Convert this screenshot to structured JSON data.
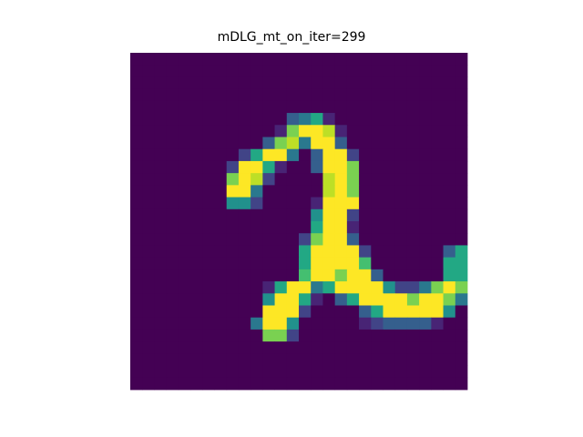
{
  "chart_data": {
    "type": "heatmap",
    "title": "mDLG_mt_on_iter=299",
    "xlabel": "",
    "ylabel": "",
    "grid": false,
    "axes": "off",
    "colormap": "viridis",
    "vmin": 0,
    "vmax": 1,
    "rows": 28,
    "cols": 28,
    "values": [
      [
        0,
        0,
        0,
        0,
        0,
        0,
        0,
        0,
        0,
        0,
        0,
        0,
        0,
        0,
        0,
        0,
        0,
        0,
        0,
        0,
        0,
        0,
        0,
        0,
        0,
        0,
        0,
        0
      ],
      [
        0,
        0,
        0,
        0,
        0,
        0,
        0,
        0,
        0,
        0,
        0,
        0,
        0,
        0,
        0,
        0,
        0,
        0,
        0,
        0,
        0,
        0,
        0,
        0,
        0,
        0,
        0,
        0
      ],
      [
        0,
        0,
        0,
        0,
        0,
        0,
        0,
        0,
        0,
        0,
        0,
        0,
        0,
        0,
        0,
        0,
        0,
        0,
        0,
        0,
        0,
        0,
        0,
        0,
        0,
        0,
        0,
        0
      ],
      [
        0,
        0,
        0,
        0,
        0,
        0,
        0,
        0,
        0,
        0,
        0,
        0,
        0,
        0,
        0,
        0,
        0,
        0,
        0,
        0,
        0,
        0,
        0,
        0,
        0,
        0,
        0,
        0
      ],
      [
        0,
        0,
        0,
        0,
        0,
        0,
        0,
        0,
        0,
        0,
        0,
        0,
        0,
        0,
        0,
        0,
        0,
        0,
        0,
        0,
        0,
        0,
        0,
        0,
        0,
        0,
        0,
        0
      ],
      [
        0,
        0,
        0,
        0,
        0,
        0,
        0,
        0,
        0,
        0,
        0,
        0,
        0,
        0.3,
        0.4,
        0.6,
        0.1,
        0,
        0,
        0,
        0,
        0,
        0,
        0,
        0,
        0,
        0,
        0
      ],
      [
        0,
        0,
        0,
        0,
        0,
        0,
        0,
        0,
        0,
        0,
        0,
        0,
        0.1,
        0.8,
        1,
        1,
        0.9,
        0.1,
        0,
        0,
        0,
        0,
        0,
        0,
        0,
        0,
        0,
        0
      ],
      [
        0,
        0,
        0,
        0,
        0,
        0,
        0,
        0,
        0,
        0,
        0,
        0.3,
        0.8,
        0.9,
        0.4,
        1,
        1,
        0.3,
        0,
        0,
        0,
        0,
        0,
        0,
        0,
        0,
        0,
        0
      ],
      [
        0,
        0,
        0,
        0,
        0,
        0,
        0,
        0,
        0,
        0.2,
        0.6,
        1,
        1,
        0.4,
        0,
        0.3,
        1,
        1,
        0.2,
        0,
        0,
        0,
        0,
        0,
        0,
        0,
        0,
        0
      ],
      [
        0,
        0,
        0,
        0,
        0,
        0,
        0,
        0,
        0.2,
        1,
        1,
        0.6,
        0.1,
        0,
        0,
        0.3,
        1,
        1,
        0.8,
        0,
        0,
        0,
        0,
        0,
        0,
        0,
        0,
        0
      ],
      [
        0,
        0,
        0,
        0,
        0,
        0,
        0,
        0,
        0.8,
        1,
        0.9,
        0.2,
        0,
        0,
        0,
        0,
        0.9,
        1,
        0.8,
        0,
        0,
        0,
        0,
        0,
        0,
        0,
        0,
        0
      ],
      [
        0,
        0,
        0,
        0,
        0,
        0,
        0,
        0,
        1,
        1,
        0.4,
        0,
        0,
        0,
        0,
        0,
        0.9,
        1,
        0.8,
        0,
        0,
        0,
        0,
        0,
        0,
        0,
        0,
        0
      ],
      [
        0,
        0,
        0,
        0,
        0,
        0,
        0,
        0,
        0.5,
        0.5,
        0.2,
        0,
        0,
        0,
        0,
        0.1,
        1,
        1,
        1,
        0,
        0,
        0,
        0,
        0,
        0,
        0,
        0,
        0
      ],
      [
        0,
        0,
        0,
        0,
        0,
        0,
        0,
        0,
        0,
        0,
        0,
        0,
        0,
        0,
        0,
        0.5,
        1,
        1,
        0.2,
        0,
        0,
        0,
        0,
        0,
        0,
        0,
        0,
        0
      ],
      [
        0,
        0,
        0,
        0,
        0,
        0,
        0,
        0,
        0,
        0,
        0,
        0,
        0,
        0,
        0,
        0.6,
        1,
        1,
        0.1,
        0,
        0,
        0,
        0,
        0,
        0,
        0,
        0,
        0
      ],
      [
        0,
        0,
        0,
        0,
        0,
        0,
        0,
        0,
        0,
        0,
        0,
        0,
        0,
        0,
        0.2,
        0.8,
        1,
        1,
        0.3,
        0,
        0,
        0,
        0,
        0,
        0,
        0,
        0,
        0
      ],
      [
        0,
        0,
        0,
        0,
        0,
        0,
        0,
        0,
        0,
        0,
        0,
        0,
        0,
        0,
        0.6,
        1,
        1,
        1,
        1,
        0.2,
        0,
        0,
        0,
        0,
        0,
        0,
        0.3,
        0.6
      ],
      [
        0,
        0,
        0,
        0,
        0,
        0,
        0,
        0,
        0,
        0,
        0,
        0,
        0,
        0,
        0.6,
        1,
        1,
        1,
        1,
        0.7,
        0,
        0,
        0,
        0,
        0,
        0,
        0.6,
        0.6
      ],
      [
        0,
        0,
        0,
        0,
        0,
        0,
        0,
        0,
        0,
        0,
        0,
        0,
        0,
        0,
        0.7,
        1,
        1,
        0.8,
        1,
        1,
        0.3,
        0,
        0,
        0,
        0,
        0,
        0.6,
        0.6
      ],
      [
        0,
        0,
        0,
        0,
        0,
        0,
        0,
        0,
        0,
        0,
        0,
        0.1,
        0.6,
        1,
        1,
        0.4,
        0.6,
        1,
        1,
        1,
        1,
        0.5,
        0.2,
        0.2,
        0.4,
        0.8,
        1,
        0.8
      ],
      [
        0,
        0,
        0,
        0,
        0,
        0,
        0,
        0,
        0,
        0,
        0,
        0.5,
        1,
        1,
        0.6,
        0.1,
        0,
        0.3,
        0.6,
        1,
        1,
        1,
        1,
        0.8,
        1,
        1,
        0.8,
        0.4
      ],
      [
        0,
        0,
        0,
        0,
        0,
        0,
        0,
        0,
        0,
        0,
        0,
        1,
        1,
        1,
        0.2,
        0,
        0,
        0,
        0,
        0.3,
        0.6,
        1,
        1,
        1,
        1,
        1,
        0.5,
        0
      ],
      [
        0,
        0,
        0,
        0,
        0,
        0,
        0,
        0,
        0,
        0,
        0.4,
        1,
        1,
        0.5,
        0,
        0,
        0,
        0,
        0,
        0.1,
        0.2,
        0.3,
        0.3,
        0.3,
        0.3,
        0.1,
        0,
        0
      ],
      [
        0,
        0,
        0,
        0,
        0,
        0,
        0,
        0,
        0,
        0,
        0,
        0.8,
        0.8,
        0.2,
        0,
        0,
        0,
        0,
        0,
        0,
        0,
        0,
        0,
        0,
        0,
        0,
        0,
        0
      ],
      [
        0,
        0,
        0,
        0,
        0,
        0,
        0,
        0,
        0,
        0,
        0,
        0,
        0,
        0,
        0,
        0,
        0,
        0,
        0,
        0,
        0,
        0,
        0,
        0,
        0,
        0,
        0,
        0
      ],
      [
        0,
        0,
        0,
        0,
        0,
        0,
        0,
        0,
        0,
        0,
        0,
        0,
        0,
        0,
        0,
        0,
        0,
        0,
        0,
        0,
        0,
        0,
        0,
        0,
        0,
        0,
        0,
        0
      ],
      [
        0,
        0,
        0,
        0,
        0,
        0,
        0,
        0,
        0,
        0,
        0,
        0,
        0,
        0,
        0,
        0,
        0,
        0,
        0,
        0,
        0,
        0,
        0,
        0,
        0,
        0,
        0,
        0
      ],
      [
        0,
        0,
        0,
        0,
        0,
        0,
        0,
        0,
        0,
        0,
        0,
        0,
        0,
        0,
        0,
        0,
        0,
        0,
        0,
        0,
        0,
        0,
        0,
        0,
        0,
        0,
        0,
        0
      ]
    ]
  }
}
